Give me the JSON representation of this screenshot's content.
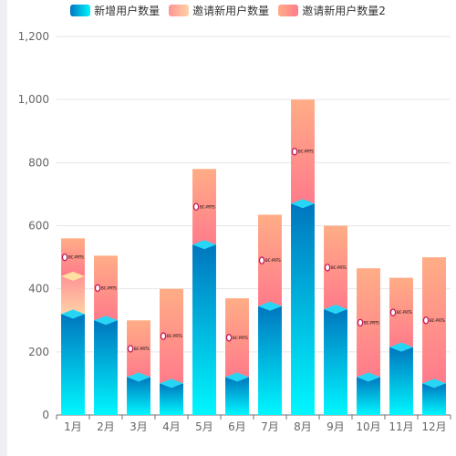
{
  "chart_data": {
    "type": "bar",
    "stacked": true,
    "categories": [
      "1月",
      "2月",
      "3月",
      "4月",
      "5月",
      "6月",
      "7月",
      "8月",
      "9月",
      "10月",
      "11月",
      "12月"
    ],
    "series": [
      {
        "name": "新增用户数量",
        "values": [
          320,
          300,
          120,
          100,
          540,
          120,
          345,
          670,
          335,
          120,
          215,
          100
        ],
        "colors": [
          "#00f7ff",
          "#0076be"
        ]
      },
      {
        "name": "邀请新用户数量",
        "values": [
          120,
          0,
          0,
          0,
          0,
          0,
          0,
          0,
          0,
          0,
          0,
          0
        ],
        "colors": [
          "#ffd2a6",
          "#ff9494"
        ]
      },
      {
        "name": "邀请新用户数量2",
        "values": [
          120,
          205,
          180,
          300,
          240,
          250,
          290,
          330,
          265,
          345,
          220,
          400
        ],
        "colors": [
          "#ff7b8b",
          "#ffad86"
        ]
      }
    ],
    "ylim": [
      0,
      1200
    ],
    "yticks": [
      "0",
      "200",
      "400",
      "600",
      "800",
      "1,000",
      "1,200"
    ],
    "grid": true,
    "legend_position": "top-center",
    "marker_label": "BC-PRTS",
    "marker_color": "#c2185b"
  }
}
